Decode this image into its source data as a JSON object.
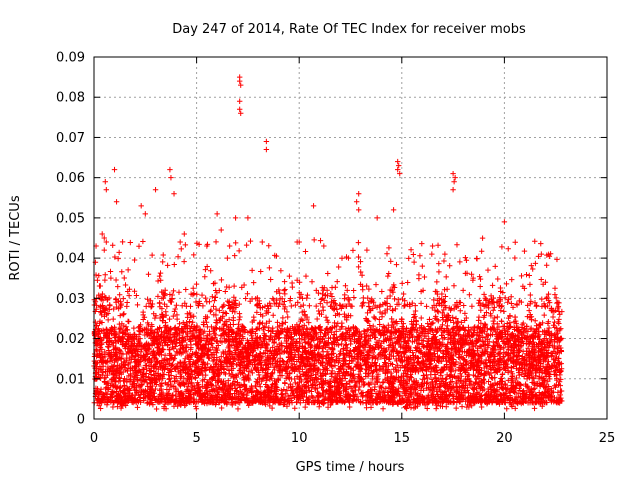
{
  "chart_data": {
    "type": "scatter",
    "title": "Day 247 of 2014, Rate Of TEC Index for receiver mobs",
    "xlabel": "GPS time / hours",
    "ylabel": "ROTI / TECUs",
    "xlim": [
      0,
      25
    ],
    "ylim": [
      0,
      0.09
    ],
    "xticks": [
      "0",
      "5",
      "10",
      "15",
      "20",
      "25"
    ],
    "yticks": [
      "0",
      "0.01",
      "0.02",
      "0.03",
      "0.04",
      "0.05",
      "0.06",
      "0.07",
      "0.08",
      "0.09"
    ],
    "xtick_values": [
      0,
      5,
      10,
      15,
      20,
      25
    ],
    "ytick_values": [
      0,
      0.01,
      0.02,
      0.03,
      0.04,
      0.05,
      0.06,
      0.07,
      0.08,
      0.09
    ],
    "grid": true,
    "marker": "+",
    "series": [
      {
        "name": "ROTI",
        "color": "#ff0000",
        "x_range": [
          0,
          22.8
        ],
        "points": [
          [
            7.1,
            0.085
          ],
          [
            7.1,
            0.084
          ],
          [
            7.15,
            0.083
          ],
          [
            7.1,
            0.079
          ],
          [
            7.1,
            0.077
          ],
          [
            7.15,
            0.076
          ],
          [
            8.4,
            0.069
          ],
          [
            8.4,
            0.067
          ],
          [
            1.0,
            0.062
          ],
          [
            3.7,
            0.062
          ],
          [
            3.75,
            0.06
          ],
          [
            0.55,
            0.059
          ],
          [
            0.6,
            0.057
          ],
          [
            3.0,
            0.057
          ],
          [
            3.9,
            0.056
          ],
          [
            14.8,
            0.064
          ],
          [
            14.85,
            0.063
          ],
          [
            14.8,
            0.062
          ],
          [
            14.9,
            0.061
          ],
          [
            17.5,
            0.061
          ],
          [
            17.6,
            0.06
          ],
          [
            17.55,
            0.059
          ],
          [
            17.5,
            0.057
          ],
          [
            12.9,
            0.056
          ],
          [
            12.8,
            0.054
          ],
          [
            12.9,
            0.052
          ],
          [
            10.7,
            0.053
          ],
          [
            13.8,
            0.05
          ],
          [
            14.6,
            0.052
          ],
          [
            2.3,
            0.053
          ],
          [
            2.5,
            0.051
          ],
          [
            1.1,
            0.054
          ],
          [
            6.0,
            0.051
          ],
          [
            6.9,
            0.05
          ],
          [
            7.5,
            0.05
          ],
          [
            20.0,
            0.049
          ],
          [
            0.1,
            0.043
          ],
          [
            0.4,
            0.046
          ],
          [
            0.5,
            0.045
          ],
          [
            0.6,
            0.044
          ],
          [
            0.5,
            0.042
          ],
          [
            9.9,
            0.044
          ],
          [
            10.0,
            0.044
          ],
          [
            15.6,
            0.039
          ],
          [
            16.5,
            0.043
          ],
          [
            17.1,
            0.041
          ],
          [
            21.8,
            0.041
          ],
          [
            4.2,
            0.044
          ],
          [
            4.4,
            0.046
          ],
          [
            5.5,
            0.043
          ],
          [
            6.2,
            0.047
          ],
          [
            8.2,
            0.044
          ],
          [
            11.2,
            0.043
          ],
          [
            12.4,
            0.04
          ],
          [
            13.3,
            0.042
          ],
          [
            16.0,
            0.038
          ],
          [
            18.4,
            0.036
          ],
          [
            19.2,
            0.037
          ],
          [
            20.9,
            0.033
          ],
          [
            22.0,
            0.034
          ],
          [
            22.6,
            0.029
          ],
          [
            22.7,
            0.026
          ],
          [
            22.75,
            0.012
          ]
        ]
      }
    ]
  }
}
